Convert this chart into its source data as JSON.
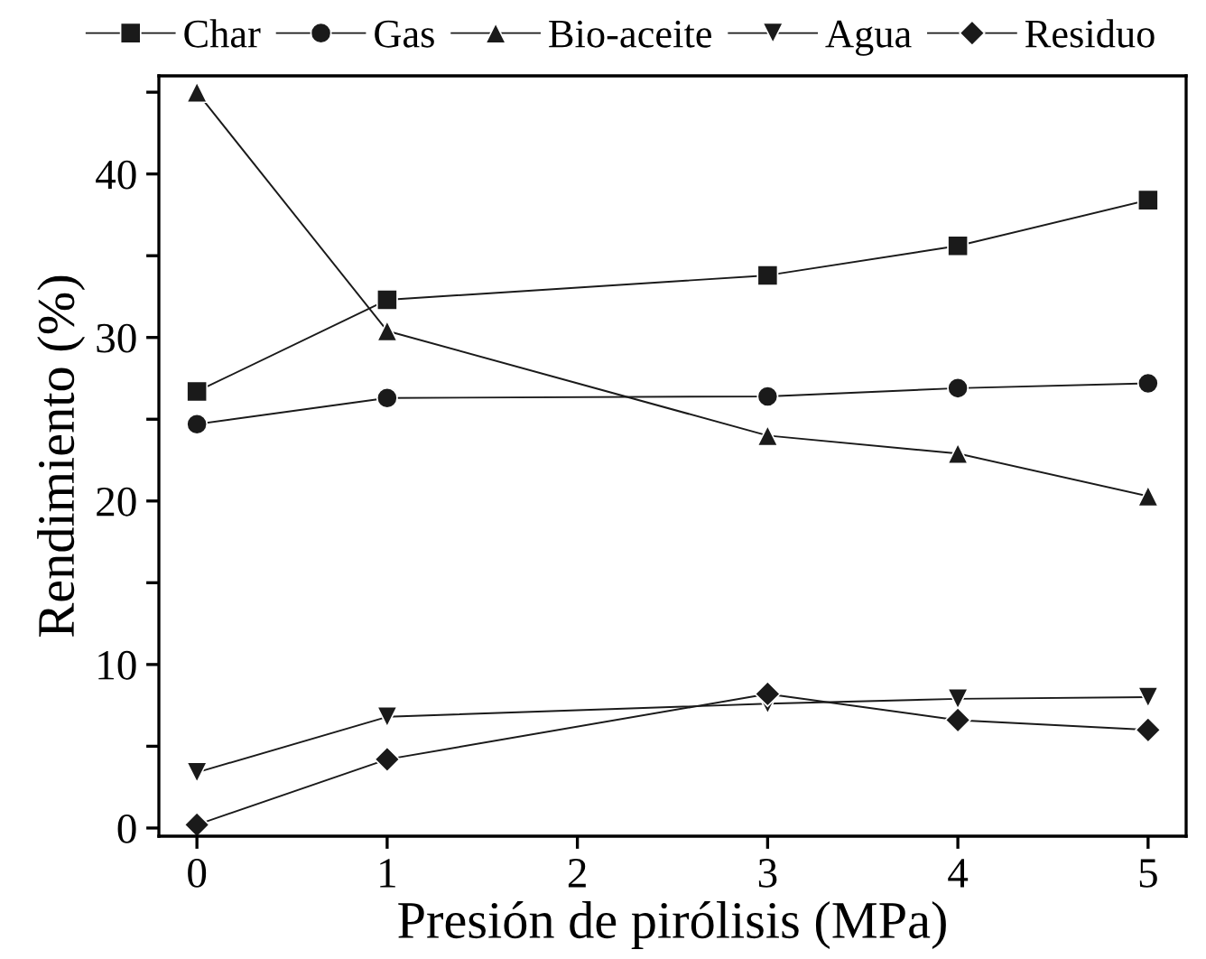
{
  "chart_data": {
    "type": "line",
    "xlabel": "Presión de pirólisis (MPa)",
    "ylabel": "Rendimiento (%)",
    "x": [
      0,
      1,
      3,
      4,
      5
    ],
    "series": [
      {
        "name": "Char",
        "color": "#1a1a1a",
        "marker": "square",
        "values": [
          26.7,
          32.3,
          33.8,
          35.6,
          38.4
        ]
      },
      {
        "name": "Gas",
        "color": "#1a1a1a",
        "marker": "circle",
        "values": [
          24.7,
          26.3,
          26.4,
          26.9,
          27.2
        ]
      },
      {
        "name": "Bio-aceite",
        "color": "#1a1a1a",
        "marker": "triangle",
        "values": [
          45,
          30.4,
          24.0,
          22.9,
          20.3
        ]
      },
      {
        "name": "Agua",
        "color": "#1a1a1a",
        "marker": "triangle_down",
        "values": [
          3.4,
          6.8,
          7.6,
          7.9,
          8.0
        ]
      },
      {
        "name": "Residuo",
        "color": "#1a1a1a",
        "marker": "diamond",
        "values": [
          0.2,
          4.2,
          8.2,
          6.6,
          6.0
        ]
      }
    ],
    "xlim": [
      -0.2,
      5.2
    ],
    "ylim": [
      -0.5,
      46
    ],
    "xticks": [
      0,
      1,
      2,
      3,
      4,
      5
    ],
    "yticks": [
      0,
      {
        "value": 5,
        "label": null
      },
      10,
      {
        "value": 15,
        "label": null
      },
      20,
      {
        "value": 25,
        "label": null
      },
      30,
      {
        "value": 35,
        "label": null
      },
      40,
      {
        "value": 45,
        "label": null
      }
    ],
    "grid": false,
    "legend": "top",
    "line_style": "solid"
  }
}
